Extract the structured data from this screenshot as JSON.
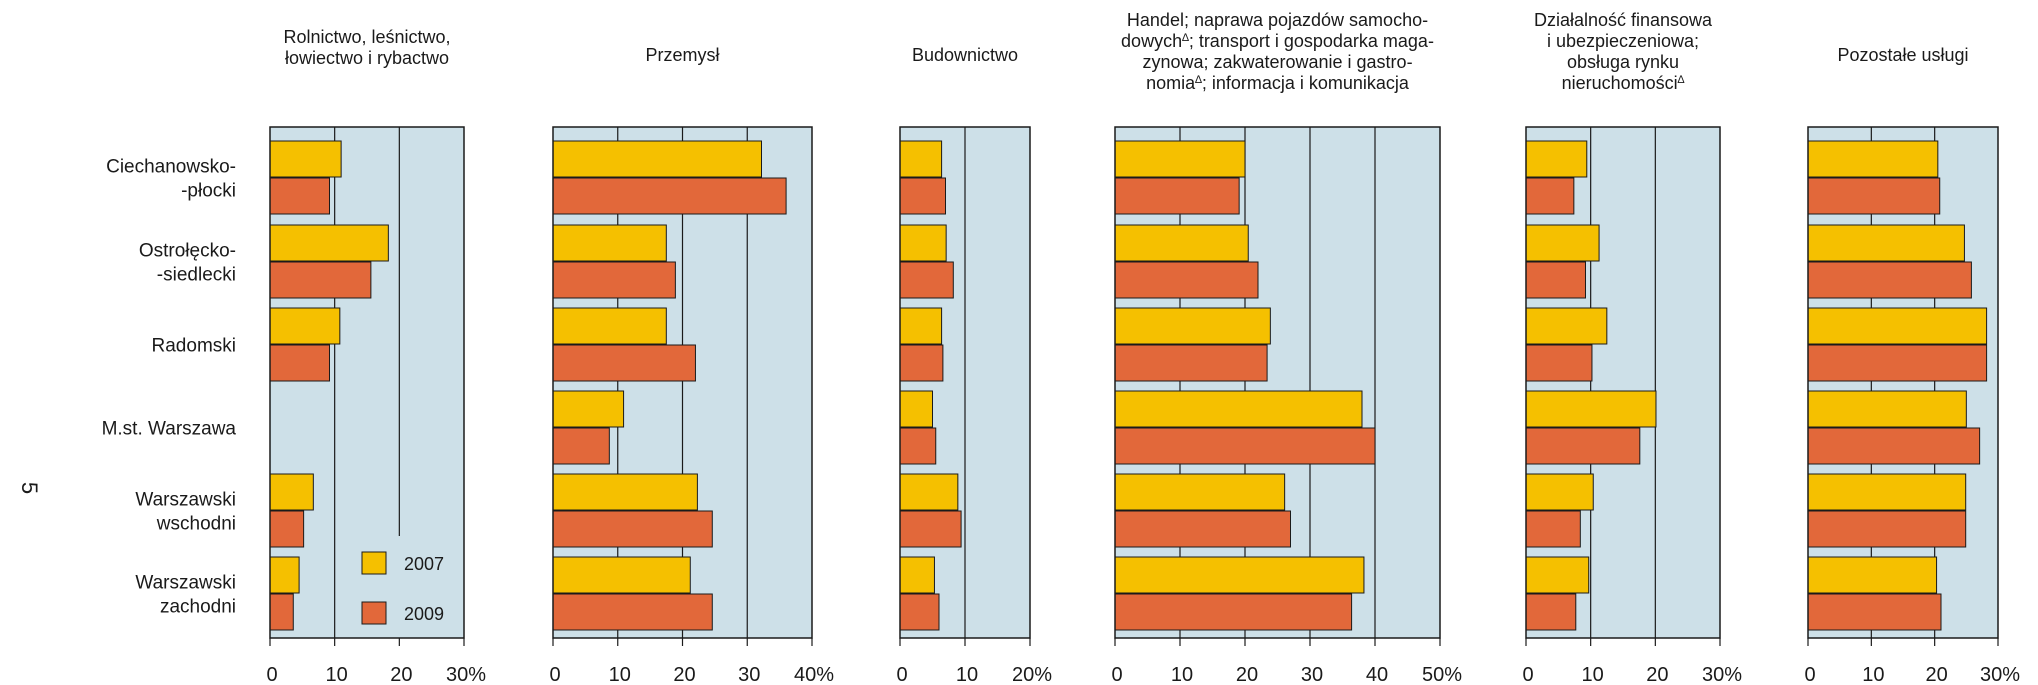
{
  "page_number": "5",
  "colors": {
    "plot_bg": "#cde0e8",
    "y2007": "#f5c000",
    "y2009": "#e2683a",
    "frame": "#1a1a1a"
  },
  "legend": [
    "2007",
    "2009"
  ],
  "chart_data": {
    "type": "bar",
    "orientation": "horizontal",
    "categories": [
      [
        "Ciechanowsko-",
        "-płocki"
      ],
      [
        "Ostrołęcko-",
        "-siedlecki"
      ],
      [
        "Radomski"
      ],
      [
        "M.st. Warszawa"
      ],
      [
        "Warszawski",
        "wschodni"
      ],
      [
        "Warszawski",
        "zachodni"
      ]
    ],
    "panels": [
      {
        "title": [
          "Rolnictwo, leśnictwo,",
          "łowiectwo i rybactwo"
        ],
        "xlim": [
          0,
          30
        ],
        "ticks": [
          "0",
          "10",
          "20",
          "30%"
        ],
        "series": [
          {
            "name": "2007",
            "values": [
              11.0,
              18.3,
              10.8,
              0,
              6.7,
              4.5
            ]
          },
          {
            "name": "2009",
            "values": [
              9.2,
              15.6,
              9.2,
              0,
              5.2,
              3.6
            ]
          }
        ]
      },
      {
        "title": [
          "Przemysł"
        ],
        "xlim": [
          0,
          40
        ],
        "ticks": [
          "0",
          "10",
          "20",
          "30",
          "40%"
        ],
        "series": [
          {
            "name": "2007",
            "values": [
              32.2,
              17.5,
              17.5,
              10.9,
              22.3,
              21.2
            ]
          },
          {
            "name": "2009",
            "values": [
              36.0,
              18.9,
              22.0,
              8.7,
              24.6,
              24.6
            ]
          }
        ]
      },
      {
        "title": [
          "Budownictwo"
        ],
        "xlim": [
          0,
          20
        ],
        "ticks": [
          "0",
          "10",
          "20%"
        ],
        "series": [
          {
            "name": "2007",
            "values": [
              6.4,
              7.1,
              6.4,
              5.0,
              8.9,
              5.3
            ]
          },
          {
            "name": "2009",
            "values": [
              7.0,
              8.2,
              6.6,
              5.5,
              9.4,
              6.0
            ]
          }
        ]
      },
      {
        "title": [
          "Handel; naprawa pojazdów samocho-",
          "dowych∆; transport i gospodarka maga-",
          "zynowa; zakwaterowanie i gastro-",
          "nomia∆; informacja i komunikacja"
        ],
        "xlim": [
          0,
          50
        ],
        "ticks": [
          "0",
          "10",
          "20",
          "30",
          "40",
          "50%"
        ],
        "series": [
          {
            "name": "2007",
            "values": [
              20.0,
              20.5,
              23.9,
              38.0,
              26.1,
              38.3
            ]
          },
          {
            "name": "2009",
            "values": [
              19.1,
              22.0,
              23.4,
              40.0,
              27.0,
              36.4
            ]
          }
        ]
      },
      {
        "title": [
          "Działalność finansowa",
          "i ubezpieczeniowa;",
          "obsługa rynku",
          "nieruchomości∆"
        ],
        "xlim": [
          0,
          30
        ],
        "ticks": [
          "0",
          "10",
          "20",
          "30%"
        ],
        "series": [
          {
            "name": "2007",
            "values": [
              9.4,
              11.3,
              12.5,
              20.1,
              10.4,
              9.7
            ]
          },
          {
            "name": "2009",
            "values": [
              7.4,
              9.2,
              10.2,
              17.6,
              8.4,
              7.7
            ]
          }
        ]
      },
      {
        "title": [
          "Pozostałe usługi"
        ],
        "xlim": [
          0,
          30
        ],
        "ticks": [
          "0",
          "10",
          "20",
          "30%"
        ],
        "series": [
          {
            "name": "2007",
            "values": [
              20.5,
              24.7,
              28.2,
              25.0,
              24.9,
              20.3
            ]
          },
          {
            "name": "2009",
            "values": [
              20.8,
              25.8,
              28.2,
              27.1,
              24.9,
              21.0
            ]
          }
        ]
      }
    ]
  }
}
